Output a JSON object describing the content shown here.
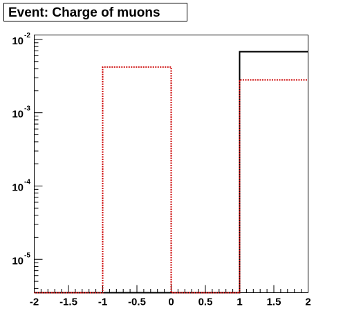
{
  "chart_data": {
    "type": "histogram",
    "title": "Event: Charge of muons",
    "xlabel": "",
    "ylabel": "",
    "xlim": [
      -2,
      2
    ],
    "ylim": [
      3.5e-06,
      0.0115
    ],
    "yscale": "log",
    "grid": false,
    "x_tick_labels": [
      "-2",
      "-1.5",
      "-1",
      "-0.5",
      "0",
      "0.5",
      "1",
      "1.5",
      "2"
    ],
    "y_tick_labels": [
      {
        "base": "10",
        "exp": "-5",
        "value": 1e-05
      },
      {
        "base": "10",
        "exp": "-4",
        "value": 0.0001
      },
      {
        "base": "10",
        "exp": "-3",
        "value": 0.001
      },
      {
        "base": "10",
        "exp": "-2",
        "value": 0.01
      }
    ],
    "bin_edges": [
      -2,
      -1,
      0,
      1,
      2
    ],
    "series": [
      {
        "color": "#000000",
        "style": "solid",
        "values": [
          0,
          0,
          0,
          0.0068
        ]
      },
      {
        "color": "#cc0000",
        "style": "dashed",
        "values": [
          0,
          0.0042,
          0,
          0.0028
        ]
      }
    ]
  }
}
